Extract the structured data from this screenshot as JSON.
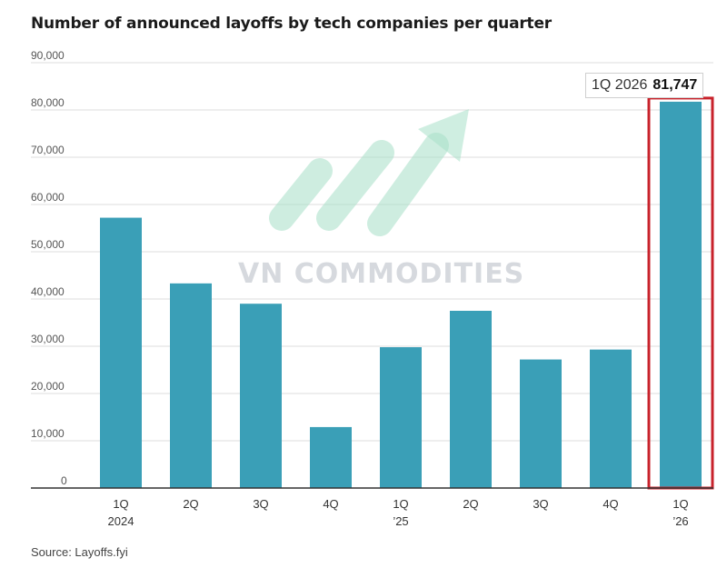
{
  "title": "Number of announced layoffs by tech companies per quarter",
  "source": "Source: Layoffs.fyi",
  "watermark": {
    "text": "VN COMMODITIES",
    "logo": "rising-arrow-logo-icon"
  },
  "callout": {
    "label": "1Q 2026",
    "value": "81,747"
  },
  "colors": {
    "bar": "#3a9fb7",
    "highlight_border": "#c8222b",
    "grid": "#dcdcdc",
    "axis": "#333333",
    "logo": "#a7e0c8"
  },
  "chart_data": {
    "type": "bar",
    "title": "Number of announced layoffs by tech companies per quarter",
    "categories": [
      [
        "1Q",
        "2024"
      ],
      [
        "2Q",
        ""
      ],
      [
        "3Q",
        ""
      ],
      [
        "4Q",
        ""
      ],
      [
        "1Q",
        "’25"
      ],
      [
        "2Q",
        ""
      ],
      [
        "3Q",
        ""
      ],
      [
        "4Q",
        ""
      ],
      [
        "1Q",
        "’26"
      ]
    ],
    "values": [
      57200,
      43300,
      39000,
      12900,
      29800,
      37500,
      27200,
      29300,
      81747
    ],
    "ylim": [
      0,
      90000
    ],
    "yticks": [
      "0",
      "10,000",
      "20,000",
      "30,000",
      "40,000",
      "50,000",
      "60,000",
      "70,000",
      "80,000",
      "90,000"
    ],
    "ytick_values": [
      0,
      10000,
      20000,
      30000,
      40000,
      50000,
      60000,
      70000,
      80000,
      90000
    ],
    "highlight_index": 8,
    "grid": true
  }
}
